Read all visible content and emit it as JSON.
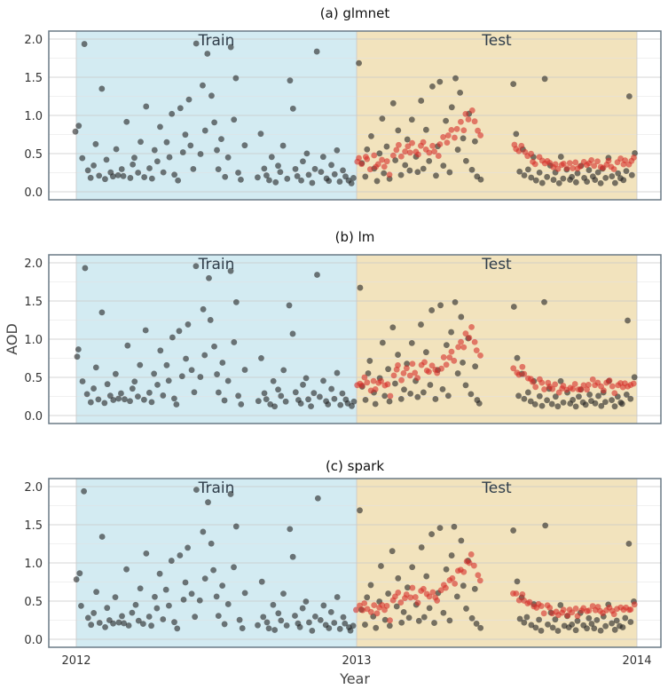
{
  "chart_data": {
    "type": "scatter",
    "x_ticks": [
      "2012",
      "2013",
      "2014"
    ],
    "y_ticks": [
      "0.0",
      "0.5",
      "1.0",
      "1.5",
      "2.0"
    ],
    "ylim": [
      0.0,
      2.0
    ],
    "xlabel": "Year",
    "ylabel": "AOD",
    "regions": [
      {
        "label": "Train",
        "from": "2012",
        "to": "2013",
        "color": "#d3ebf2"
      },
      {
        "label": "Test",
        "from": "2013",
        "to": "2014",
        "color": "#f2e3bd"
      }
    ],
    "colors": {
      "observed": "#222222",
      "predicted": "#d62f2a"
    },
    "panels": [
      {
        "title": "(a) glmnet",
        "pred_scale": 1.0
      },
      {
        "title": "(b) lm",
        "pred_scale": 1.06
      },
      {
        "title": "(c) spark",
        "pred_scale": 1.04
      }
    ],
    "observed": [
      [
        2012.0,
        0.78
      ],
      [
        2012.01,
        0.87
      ],
      [
        2012.02,
        0.44
      ],
      [
        2012.03,
        1.93
      ],
      [
        2012.04,
        0.28
      ],
      [
        2012.05,
        0.18
      ],
      [
        2012.06,
        0.35
      ],
      [
        2012.07,
        0.62
      ],
      [
        2012.08,
        0.22
      ],
      [
        2012.09,
        1.35
      ],
      [
        2012.1,
        0.16
      ],
      [
        2012.11,
        0.42
      ],
      [
        2012.12,
        0.25
      ],
      [
        2012.13,
        0.2
      ],
      [
        2012.14,
        0.55
      ],
      [
        2012.15,
        0.22
      ],
      [
        2012.16,
        0.3
      ],
      [
        2012.17,
        0.21
      ],
      [
        2012.18,
        0.92
      ],
      [
        2012.19,
        0.18
      ],
      [
        2012.2,
        0.35
      ],
      [
        2012.21,
        0.45
      ],
      [
        2012.22,
        0.25
      ],
      [
        2012.23,
        0.66
      ],
      [
        2012.24,
        0.2
      ],
      [
        2012.25,
        1.12
      ],
      [
        2012.26,
        0.3
      ],
      [
        2012.27,
        0.18
      ],
      [
        2012.28,
        0.55
      ],
      [
        2012.29,
        0.4
      ],
      [
        2012.3,
        0.85
      ],
      [
        2012.31,
        0.26
      ],
      [
        2012.32,
        0.65
      ],
      [
        2012.33,
        0.45
      ],
      [
        2012.34,
        1.02
      ],
      [
        2012.35,
        0.22
      ],
      [
        2012.36,
        0.15
      ],
      [
        2012.37,
        1.1
      ],
      [
        2012.38,
        0.52
      ],
      [
        2012.39,
        0.75
      ],
      [
        2012.4,
        1.2
      ],
      [
        2012.41,
        0.6
      ],
      [
        2012.42,
        0.3
      ],
      [
        2012.43,
        1.95
      ],
      [
        2012.44,
        0.5
      ],
      [
        2012.45,
        1.4
      ],
      [
        2012.46,
        0.8
      ],
      [
        2012.47,
        1.8
      ],
      [
        2012.48,
        1.25
      ],
      [
        2012.49,
        0.9
      ],
      [
        2012.5,
        0.55
      ],
      [
        2012.51,
        0.3
      ],
      [
        2012.52,
        0.7
      ],
      [
        2012.53,
        0.2
      ],
      [
        2012.54,
        0.45
      ],
      [
        2012.55,
        1.9
      ],
      [
        2012.56,
        0.95
      ],
      [
        2012.57,
        1.48
      ],
      [
        2012.58,
        0.25
      ],
      [
        2012.59,
        0.15
      ],
      [
        2012.6,
        0.6
      ],
      [
        2012.65,
        0.18
      ],
      [
        2012.66,
        0.75
      ],
      [
        2012.67,
        0.3
      ],
      [
        2012.68,
        0.22
      ],
      [
        2012.69,
        0.15
      ],
      [
        2012.7,
        0.45
      ],
      [
        2012.71,
        0.12
      ],
      [
        2012.72,
        0.35
      ],
      [
        2012.73,
        0.25
      ],
      [
        2012.74,
        0.6
      ],
      [
        2012.75,
        0.18
      ],
      [
        2012.76,
        1.45
      ],
      [
        2012.77,
        1.08
      ],
      [
        2012.78,
        0.3
      ],
      [
        2012.79,
        0.2
      ],
      [
        2012.8,
        0.15
      ],
      [
        2012.81,
        0.4
      ],
      [
        2012.82,
        0.5
      ],
      [
        2012.83,
        0.22
      ],
      [
        2012.84,
        0.12
      ],
      [
        2012.85,
        0.3
      ],
      [
        2012.86,
        1.84
      ],
      [
        2012.87,
        0.25
      ],
      [
        2012.88,
        0.45
      ],
      [
        2012.89,
        0.18
      ],
      [
        2012.9,
        0.15
      ],
      [
        2012.91,
        0.35
      ],
      [
        2012.92,
        0.22
      ],
      [
        2012.93,
        0.55
      ],
      [
        2012.94,
        0.14
      ],
      [
        2012.95,
        0.28
      ],
      [
        2012.96,
        0.2
      ],
      [
        2012.97,
        0.15
      ],
      [
        2012.98,
        0.12
      ],
      [
        2012.99,
        0.18
      ],
      [
        2013.01,
        1.68
      ],
      [
        2013.02,
        0.38
      ],
      [
        2013.03,
        0.2
      ],
      [
        2013.04,
        0.55
      ],
      [
        2013.05,
        0.72
      ],
      [
        2013.06,
        0.3
      ],
      [
        2013.07,
        0.15
      ],
      [
        2013.08,
        0.5
      ],
      [
        2013.09,
        0.95
      ],
      [
        2013.1,
        0.25
      ],
      [
        2013.11,
        0.6
      ],
      [
        2013.12,
        0.18
      ],
      [
        2013.13,
        1.15
      ],
      [
        2013.14,
        0.42
      ],
      [
        2013.15,
        0.8
      ],
      [
        2013.16,
        0.22
      ],
      [
        2013.17,
        0.35
      ],
      [
        2013.18,
        0.68
      ],
      [
        2013.19,
        0.28
      ],
      [
        2013.2,
        0.95
      ],
      [
        2013.21,
        0.45
      ],
      [
        2013.22,
        0.25
      ],
      [
        2013.23,
        1.2
      ],
      [
        2013.24,
        0.3
      ],
      [
        2013.25,
        0.82
      ],
      [
        2013.26,
        0.4
      ],
      [
        2013.27,
        1.38
      ],
      [
        2013.28,
        0.22
      ],
      [
        2013.29,
        0.6
      ],
      [
        2013.3,
        1.45
      ],
      [
        2013.31,
        0.35
      ],
      [
        2013.32,
        0.92
      ],
      [
        2013.33,
        0.25
      ],
      [
        2013.34,
        1.1
      ],
      [
        2013.35,
        1.48
      ],
      [
        2013.36,
        0.55
      ],
      [
        2013.37,
        1.3
      ],
      [
        2013.38,
        0.7
      ],
      [
        2013.39,
        0.4
      ],
      [
        2013.4,
        1.02
      ],
      [
        2013.41,
        0.28
      ],
      [
        2013.42,
        0.65
      ],
      [
        2013.43,
        0.2
      ],
      [
        2013.44,
        0.15
      ],
      [
        2013.56,
        1.42
      ],
      [
        2013.57,
        0.75
      ],
      [
        2013.58,
        0.26
      ],
      [
        2013.59,
        0.55
      ],
      [
        2013.6,
        0.22
      ],
      [
        2013.61,
        0.3
      ],
      [
        2013.62,
        0.18
      ],
      [
        2013.63,
        0.45
      ],
      [
        2013.64,
        0.15
      ],
      [
        2013.65,
        0.25
      ],
      [
        2013.66,
        0.12
      ],
      [
        2013.67,
        1.48
      ],
      [
        2013.68,
        0.2
      ],
      [
        2013.69,
        0.35
      ],
      [
        2013.7,
        0.15
      ],
      [
        2013.71,
        0.25
      ],
      [
        2013.72,
        0.12
      ],
      [
        2013.73,
        0.45
      ],
      [
        2013.74,
        0.18
      ],
      [
        2013.75,
        0.3
      ],
      [
        2013.76,
        0.15
      ],
      [
        2013.77,
        0.2
      ],
      [
        2013.78,
        0.12
      ],
      [
        2013.79,
        0.25
      ],
      [
        2013.8,
        0.35
      ],
      [
        2013.81,
        0.18
      ],
      [
        2013.82,
        0.14
      ],
      [
        2013.83,
        0.28
      ],
      [
        2013.84,
        0.2
      ],
      [
        2013.85,
        0.15
      ],
      [
        2013.86,
        0.25
      ],
      [
        2013.87,
        0.12
      ],
      [
        2013.88,
        0.3
      ],
      [
        2013.89,
        0.18
      ],
      [
        2013.9,
        0.45
      ],
      [
        2013.91,
        0.2
      ],
      [
        2013.92,
        0.12
      ],
      [
        2013.93,
        0.25
      ],
      [
        2013.94,
        0.18
      ],
      [
        2013.95,
        0.15
      ],
      [
        2013.96,
        0.28
      ],
      [
        2013.97,
        1.25
      ],
      [
        2013.98,
        0.22
      ],
      [
        2013.99,
        0.5
      ]
    ],
    "predicted": [
      [
        2013.0,
        0.38
      ],
      [
        2013.01,
        0.42
      ],
      [
        2013.02,
        0.35
      ],
      [
        2013.03,
        0.48
      ],
      [
        2013.04,
        0.4
      ],
      [
        2013.05,
        0.32
      ],
      [
        2013.06,
        0.45
      ],
      [
        2013.07,
        0.3
      ],
      [
        2013.08,
        0.38
      ],
      [
        2013.09,
        0.42
      ],
      [
        2013.1,
        0.35
      ],
      [
        2013.11,
        0.4
      ],
      [
        2013.12,
        0.25
      ],
      [
        2013.13,
        0.5
      ],
      [
        2013.14,
        0.55
      ],
      [
        2013.15,
        0.6
      ],
      [
        2013.16,
        0.45
      ],
      [
        2013.17,
        0.52
      ],
      [
        2013.18,
        0.58
      ],
      [
        2013.19,
        0.5
      ],
      [
        2013.2,
        0.62
      ],
      [
        2013.21,
        0.55
      ],
      [
        2013.22,
        0.48
      ],
      [
        2013.23,
        0.6
      ],
      [
        2013.24,
        0.65
      ],
      [
        2013.25,
        0.58
      ],
      [
        2013.26,
        0.52
      ],
      [
        2013.27,
        0.62
      ],
      [
        2013.28,
        0.55
      ],
      [
        2013.29,
        0.5
      ],
      [
        2013.3,
        0.6
      ],
      [
        2013.31,
        0.7
      ],
      [
        2013.32,
        0.65
      ],
      [
        2013.33,
        0.72
      ],
      [
        2013.34,
        0.78
      ],
      [
        2013.35,
        0.7
      ],
      [
        2013.36,
        0.85
      ],
      [
        2013.37,
        0.9
      ],
      [
        2013.38,
        0.82
      ],
      [
        2013.39,
        1.0
      ],
      [
        2013.4,
        0.95
      ],
      [
        2013.41,
        1.08
      ],
      [
        2013.42,
        0.9
      ],
      [
        2013.43,
        0.8
      ],
      [
        2013.44,
        0.72
      ],
      [
        2013.56,
        0.6
      ],
      [
        2013.57,
        0.55
      ],
      [
        2013.58,
        0.52
      ],
      [
        2013.59,
        0.58
      ],
      [
        2013.6,
        0.5
      ],
      [
        2013.61,
        0.45
      ],
      [
        2013.62,
        0.48
      ],
      [
        2013.63,
        0.42
      ],
      [
        2013.64,
        0.38
      ],
      [
        2013.65,
        0.45
      ],
      [
        2013.66,
        0.4
      ],
      [
        2013.67,
        0.35
      ],
      [
        2013.68,
        0.42
      ],
      [
        2013.69,
        0.38
      ],
      [
        2013.7,
        0.32
      ],
      [
        2013.71,
        0.36
      ],
      [
        2013.72,
        0.3
      ],
      [
        2013.73,
        0.34
      ],
      [
        2013.74,
        0.38
      ],
      [
        2013.75,
        0.3
      ],
      [
        2013.76,
        0.35
      ],
      [
        2013.77,
        0.32
      ],
      [
        2013.78,
        0.38
      ],
      [
        2013.79,
        0.3
      ],
      [
        2013.8,
        0.35
      ],
      [
        2013.81,
        0.4
      ],
      [
        2013.82,
        0.33
      ],
      [
        2013.83,
        0.38
      ],
      [
        2013.84,
        0.42
      ],
      [
        2013.85,
        0.36
      ],
      [
        2013.86,
        0.4
      ],
      [
        2013.87,
        0.35
      ],
      [
        2013.88,
        0.32
      ],
      [
        2013.89,
        0.38
      ],
      [
        2013.9,
        0.42
      ],
      [
        2013.91,
        0.35
      ],
      [
        2013.92,
        0.3
      ],
      [
        2013.93,
        0.38
      ],
      [
        2013.94,
        0.42
      ],
      [
        2013.95,
        0.36
      ],
      [
        2013.96,
        0.4
      ],
      [
        2013.97,
        0.35
      ],
      [
        2013.98,
        0.38
      ],
      [
        2013.99,
        0.42
      ]
    ]
  }
}
